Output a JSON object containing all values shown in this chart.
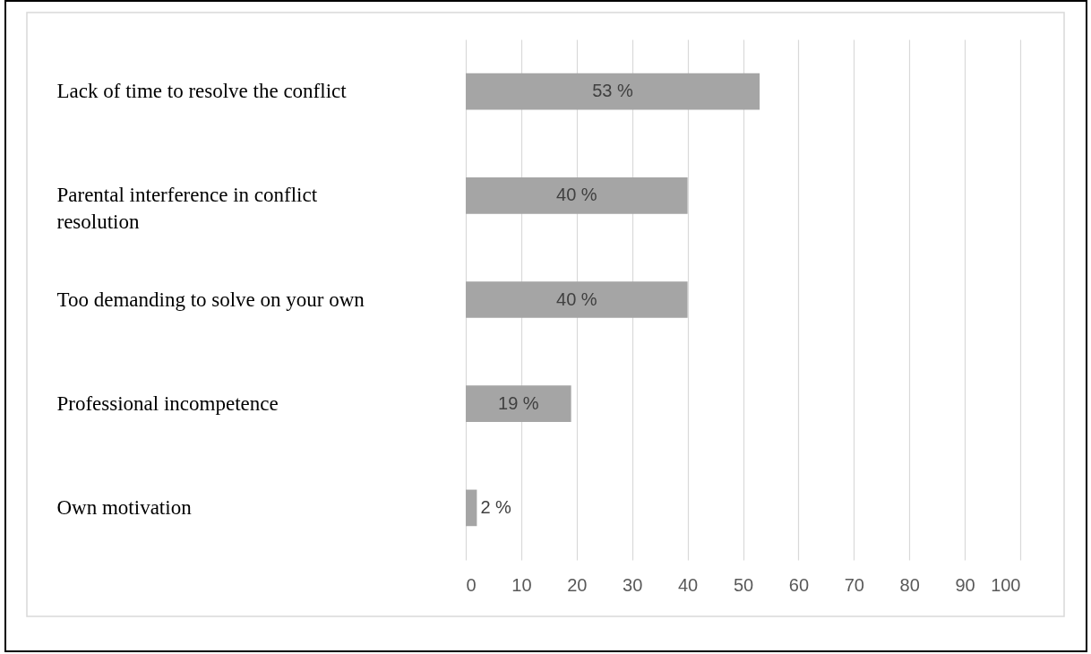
{
  "chart_data": {
    "type": "bar",
    "orientation": "horizontal",
    "categories": [
      "Lack of time to resolve the conflict",
      "Parental interference in conflict resolution",
      "Too demanding to solve on your own",
      "Professional incompetence",
      "Own motivation"
    ],
    "values": [
      53,
      40,
      40,
      19,
      2
    ],
    "color": "#a5a5a5",
    "value_labels": [
      "53 %",
      "40 %",
      "40 %",
      "19 %",
      "2 %"
    ],
    "xlim": [
      0,
      100
    ],
    "xticks": [
      0,
      10,
      20,
      30,
      40,
      50,
      60,
      70,
      80,
      90,
      100
    ],
    "grid": "x"
  }
}
